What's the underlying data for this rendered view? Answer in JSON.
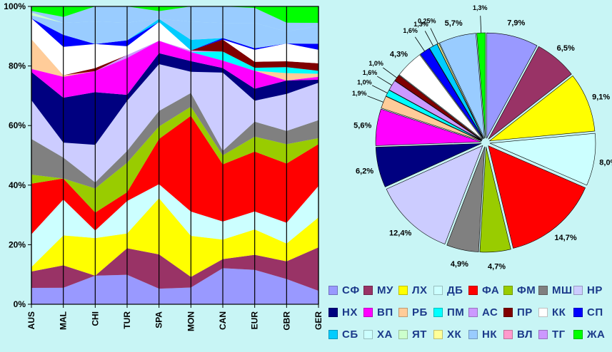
{
  "colors": {
    "background": "#c8f5f5",
    "label_text": "#1b3a8a"
  },
  "chart_data": [
    {
      "type": "area",
      "stacked": true,
      "normalized": true,
      "categories": [
        "AUS",
        "MAL",
        "CHI",
        "TUR",
        "SPA",
        "MON",
        "CAN",
        "EUR",
        "GBR",
        "GER"
      ],
      "ylim": [
        0,
        100
      ],
      "yticks": [
        "0%",
        "20%",
        "40%",
        "60%",
        "80%",
        "100%"
      ],
      "grid": "vertical lines at categories",
      "series": [
        {
          "name": "СФ",
          "color": "#9999ff",
          "values": [
            5.5,
            5.5,
            9.5,
            10,
            5,
            5.5,
            12,
            11.5,
            8.5,
            4.5
          ]
        },
        {
          "name": "МУ",
          "color": "#993366",
          "values": [
            5.5,
            7.5,
            0,
            9,
            11,
            3.5,
            3,
            5,
            6,
            14.5
          ]
        },
        {
          "name": "ЛХ",
          "color": "#ffff00",
          "values": [
            1.5,
            10,
            12.5,
            5,
            18,
            13.5,
            6.5,
            8.5,
            6,
            10
          ]
        },
        {
          "name": "ДБ",
          "color": "#ccffff",
          "values": [
            11,
            12,
            2.5,
            11,
            4.5,
            8,
            6,
            6,
            7,
            10.5
          ]
        },
        {
          "name": "ФА",
          "color": "#ff0000",
          "values": [
            17,
            7,
            6,
            3,
            14.5,
            31.5,
            19,
            20,
            20,
            14
          ]
        },
        {
          "name": "ФМ",
          "color": "#99cc00",
          "values": [
            3,
            0,
            8,
            10,
            4,
            3,
            3,
            5,
            6.5,
            2
          ]
        },
        {
          "name": "МШ",
          "color": "#808080",
          "values": [
            12,
            7,
            2,
            4,
            5,
            4.5,
            1.5,
            5,
            4.5,
            6
          ]
        },
        {
          "name": "НР",
          "color": "#ccccff",
          "values": [
            13,
            5,
            12.5,
            17,
            15,
            7,
            26,
            7,
            12.5,
            12.5
          ]
        },
        {
          "name": "НХ",
          "color": "#000080",
          "values": [
            9.5,
            15,
            17.5,
            2,
            3.5,
            3.5,
            1.5,
            4,
            4.5,
            1
          ]
        },
        {
          "name": "ВП",
          "color": "#ff00ff",
          "values": [
            1,
            7,
            7,
            12.5,
            4,
            3,
            2.5,
            6,
            0,
            1
          ]
        },
        {
          "name": "РБ",
          "color": "#ffcc99",
          "values": [
            10,
            0.5,
            0,
            0,
            0,
            0,
            0,
            0,
            2.5,
            1
          ]
        },
        {
          "name": "ПМ",
          "color": "#00ffff",
          "values": [
            0,
            0,
            0,
            0,
            0,
            0,
            3,
            1,
            2,
            1
          ]
        },
        {
          "name": "АС",
          "color": "#cc99ff",
          "values": [
            0,
            0,
            0,
            1,
            0,
            0.5,
            0,
            0,
            0,
            0
          ]
        },
        {
          "name": "ПР",
          "color": "#800000",
          "values": [
            0,
            0,
            1,
            0,
            0,
            0,
            4,
            2,
            2,
            2.5
          ]
        },
        {
          "name": "КК",
          "color": "#ffffff",
          "values": [
            7,
            9.5,
            8,
            3,
            6,
            0,
            0,
            4,
            6,
            4.5
          ]
        },
        {
          "name": "СП",
          "color": "#0000ff",
          "values": [
            0,
            4,
            0,
            2,
            0,
            0,
            0.5,
            0.5,
            0,
            2
          ]
        },
        {
          "name": "СБ",
          "color": "#00ccff",
          "values": [
            0,
            0,
            0,
            0,
            1,
            3.5,
            0,
            0,
            0,
            0
          ]
        },
        {
          "name": "ХА",
          "color": "#99ccff",
          "values": [
            1,
            4,
            7.5,
            6,
            0,
            6,
            5,
            8.5,
            4,
            6
          ]
        },
        {
          "name": "ЯТ",
          "color": "#ccffcc",
          "values": [
            1,
            0,
            0,
            0,
            0,
            0,
            0,
            0,
            0,
            0
          ]
        },
        {
          "name": "ХК",
          "color": "#ffff99",
          "values": [
            0,
            0,
            0,
            0,
            0,
            0,
            0,
            0,
            0,
            0
          ]
        },
        {
          "name": "НК",
          "color": "#99ccff",
          "values": [
            0.5,
            2,
            5,
            5.5,
            2.5,
            5,
            5.5,
            5,
            3,
            1
          ]
        },
        {
          "name": "ВЛ",
          "color": "#ff99cc",
          "values": [
            0,
            0,
            0,
            0,
            0,
            0,
            0,
            0,
            0,
            0
          ]
        },
        {
          "name": "ТГ",
          "color": "#cc99ff",
          "values": [
            0,
            0,
            0,
            0,
            0,
            0,
            0,
            0,
            0,
            0
          ]
        },
        {
          "name": "ЖА",
          "color": "#00ff00",
          "values": [
            1.5,
            3.5,
            0,
            0,
            1.5,
            0,
            0,
            0.5,
            5.5,
            5.5
          ]
        }
      ]
    },
    {
      "type": "pie",
      "exploded": true,
      "slices": [
        {
          "name": "СФ",
          "value": 7.9,
          "label": "7,9%",
          "color": "#9999ff"
        },
        {
          "name": "МУ",
          "value": 6.5,
          "label": "6,5%",
          "color": "#993366"
        },
        {
          "name": "ЛХ",
          "value": 9.1,
          "label": "9,1%",
          "color": "#ffff00"
        },
        {
          "name": "ДБ",
          "value": 8.0,
          "label": "8,0%",
          "color": "#ccffff"
        },
        {
          "name": "ФА",
          "value": 14.7,
          "label": "14,7%",
          "color": "#ff0000"
        },
        {
          "name": "ФМ",
          "value": 4.7,
          "label": "4,7%",
          "color": "#99cc00"
        },
        {
          "name": "МШ",
          "value": 4.9,
          "label": "4,9%",
          "color": "#808080"
        },
        {
          "name": "НР",
          "value": 12.4,
          "label": "12,4%",
          "color": "#ccccff"
        },
        {
          "name": "НХ",
          "value": 6.2,
          "label": "6,2%",
          "color": "#000080"
        },
        {
          "name": "ВП",
          "value": 5.6,
          "label": "5,6%",
          "color": "#ff00ff"
        },
        {
          "name": "РБ",
          "value": 1.9,
          "label": "1,9%",
          "color": "#ffcc99"
        },
        {
          "name": "ПМ",
          "value": 1.0,
          "label": "1,0%",
          "color": "#00ffff"
        },
        {
          "name": "АС",
          "value": 1.6,
          "label": "1,6%",
          "color": "#cc99ff"
        },
        {
          "name": "ПР",
          "value": 1.0,
          "label": "1,0%",
          "color": "#800000"
        },
        {
          "name": "КК",
          "value": 4.3,
          "label": "4,3%",
          "color": "#ffffff"
        },
        {
          "name": "СП",
          "value": 1.6,
          "label": "1,6%",
          "color": "#0000ff"
        },
        {
          "name": "СБ",
          "value": 1.3,
          "label": "1,3%",
          "color": "#00ccff"
        },
        {
          "name": "ХК",
          "value": 0.25,
          "label": "0,25%",
          "color": "#ffff99"
        },
        {
          "name": "НК",
          "value": 5.7,
          "label": "5,7%",
          "color": "#99ccff"
        },
        {
          "name": "ЖА",
          "value": 1.3,
          "label": "1,3%",
          "color": "#00ff00"
        }
      ]
    }
  ],
  "legend": {
    "placement": "bottom-right",
    "items": [
      {
        "label": "СФ",
        "color": "#9999ff"
      },
      {
        "label": "МУ",
        "color": "#993366"
      },
      {
        "label": "ЛХ",
        "color": "#ffff00"
      },
      {
        "label": "ДБ",
        "color": "#ccffff"
      },
      {
        "label": "ФА",
        "color": "#ff0000"
      },
      {
        "label": "ФМ",
        "color": "#99cc00"
      },
      {
        "label": "МШ",
        "color": "#808080"
      },
      {
        "label": "НР",
        "color": "#ccccff"
      },
      {
        "label": "НХ",
        "color": "#000080"
      },
      {
        "label": "ВП",
        "color": "#ff00ff"
      },
      {
        "label": "РБ",
        "color": "#ffcc99"
      },
      {
        "label": "ПМ",
        "color": "#00ffff"
      },
      {
        "label": "АС",
        "color": "#cc99ff"
      },
      {
        "label": "ПР",
        "color": "#800000"
      },
      {
        "label": "КК",
        "color": "#ffffff"
      },
      {
        "label": "СП",
        "color": "#0000ff"
      },
      {
        "label": "СБ",
        "color": "#00ccff"
      },
      {
        "label": "ХА",
        "color": "#ccffff"
      },
      {
        "label": "ЯТ",
        "color": "#ccffcc"
      },
      {
        "label": "ХК",
        "color": "#ffff99"
      },
      {
        "label": "НК",
        "color": "#99ccff"
      },
      {
        "label": "ВЛ",
        "color": "#ff99cc"
      },
      {
        "label": "ТГ",
        "color": "#cc99ff"
      },
      {
        "label": "ЖА",
        "color": "#00ff00"
      }
    ]
  }
}
